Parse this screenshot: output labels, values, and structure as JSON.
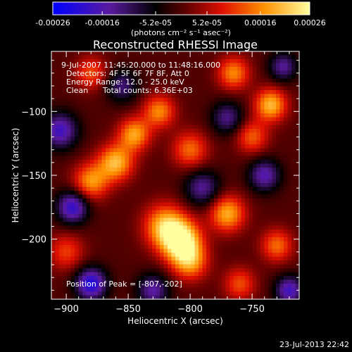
{
  "chart_data": {
    "type": "heatmap",
    "title": "Reconstructed RHESSI Image",
    "xlabel": "Heliocentric X (arcsec)",
    "ylabel": "Heliocentric Y (arcsec)",
    "xlim": [
      -912,
      -712
    ],
    "ylim": [
      -247,
      -53
    ],
    "x_ticks": [
      -900,
      -850,
      -800,
      -750
    ],
    "y_ticks": [
      -100,
      -150,
      -200
    ],
    "colorbar": {
      "range": [
        -0.00026,
        0.00026
      ],
      "ticks": [
        "-0.00026",
        "-0.00016",
        "-5.2e-05",
        "5.2e-05",
        "0.00016",
        "0.00026"
      ],
      "tick_values": [
        -0.00026,
        -0.00016,
        -5.2e-05,
        5.2e-05,
        0.00016,
        0.00026
      ],
      "label": "(photons cm⁻² s⁻¹ asec⁻²)"
    },
    "annotations": {
      "time_range": "9-Jul-2007 11:45:20.000 to 11:48:16.000",
      "detectors": "Detectors: 4F 5F 6F 7F 8F, Att 0",
      "energy": "Energy Range: 12.0 - 25.0 keV",
      "clean": "Clean",
      "counts": "Total counts: 6.36E+03",
      "peak": "Position of Peak = [-807,-202]"
    },
    "peak": [
      -807,
      -202
    ],
    "sources": [
      {
        "x": -807,
        "y": -202,
        "amp": 0.00026,
        "sigma": 11
      },
      {
        "x": -820,
        "y": -190,
        "amp": 0.0002,
        "sigma": 12
      },
      {
        "x": -800,
        "y": -218,
        "amp": 0.00016,
        "sigma": 10
      },
      {
        "x": -770,
        "y": -180,
        "amp": 0.00019,
        "sigma": 10
      },
      {
        "x": -860,
        "y": -140,
        "amp": 0.0002,
        "sigma": 10
      },
      {
        "x": -880,
        "y": -155,
        "amp": 0.00017,
        "sigma": 10
      },
      {
        "x": -845,
        "y": -118,
        "amp": 0.00018,
        "sigma": 9
      },
      {
        "x": -825,
        "y": -100,
        "amp": 0.00016,
        "sigma": 9
      },
      {
        "x": -800,
        "y": -130,
        "amp": 0.00014,
        "sigma": 10
      },
      {
        "x": -735,
        "y": -95,
        "amp": 0.0002,
        "sigma": 9
      },
      {
        "x": -765,
        "y": -70,
        "amp": 0.00016,
        "sigma": 9
      },
      {
        "x": -750,
        "y": -120,
        "amp": 0.00013,
        "sigma": 9
      },
      {
        "x": -730,
        "y": -205,
        "amp": 0.00014,
        "sigma": 9
      },
      {
        "x": -760,
        "y": -235,
        "amp": 0.00012,
        "sigma": 9
      },
      {
        "x": -900,
        "y": -210,
        "amp": 0.00011,
        "sigma": 10
      },
      {
        "x": -880,
        "y": -70,
        "amp": 0.00012,
        "sigma": 9
      },
      {
        "x": -905,
        "y": -115,
        "amp": -0.00018,
        "sigma": 10
      },
      {
        "x": -895,
        "y": -175,
        "amp": -0.0002,
        "sigma": 9
      },
      {
        "x": -880,
        "y": -235,
        "amp": -0.00022,
        "sigma": 9
      },
      {
        "x": -790,
        "y": -160,
        "amp": -0.00014,
        "sigma": 10
      },
      {
        "x": -740,
        "y": -150,
        "amp": -0.00016,
        "sigma": 9
      },
      {
        "x": -720,
        "y": -240,
        "amp": -0.00018,
        "sigma": 8
      },
      {
        "x": -830,
        "y": -240,
        "amp": -0.00015,
        "sigma": 9
      },
      {
        "x": -770,
        "y": -105,
        "amp": -0.00013,
        "sigma": 9
      },
      {
        "x": -855,
        "y": -80,
        "amp": -0.00012,
        "sigma": 9
      },
      {
        "x": -725,
        "y": -65,
        "amp": -0.00014,
        "sigma": 8
      }
    ]
  },
  "footer": {
    "date": "23-Jul-2013 22:42"
  }
}
